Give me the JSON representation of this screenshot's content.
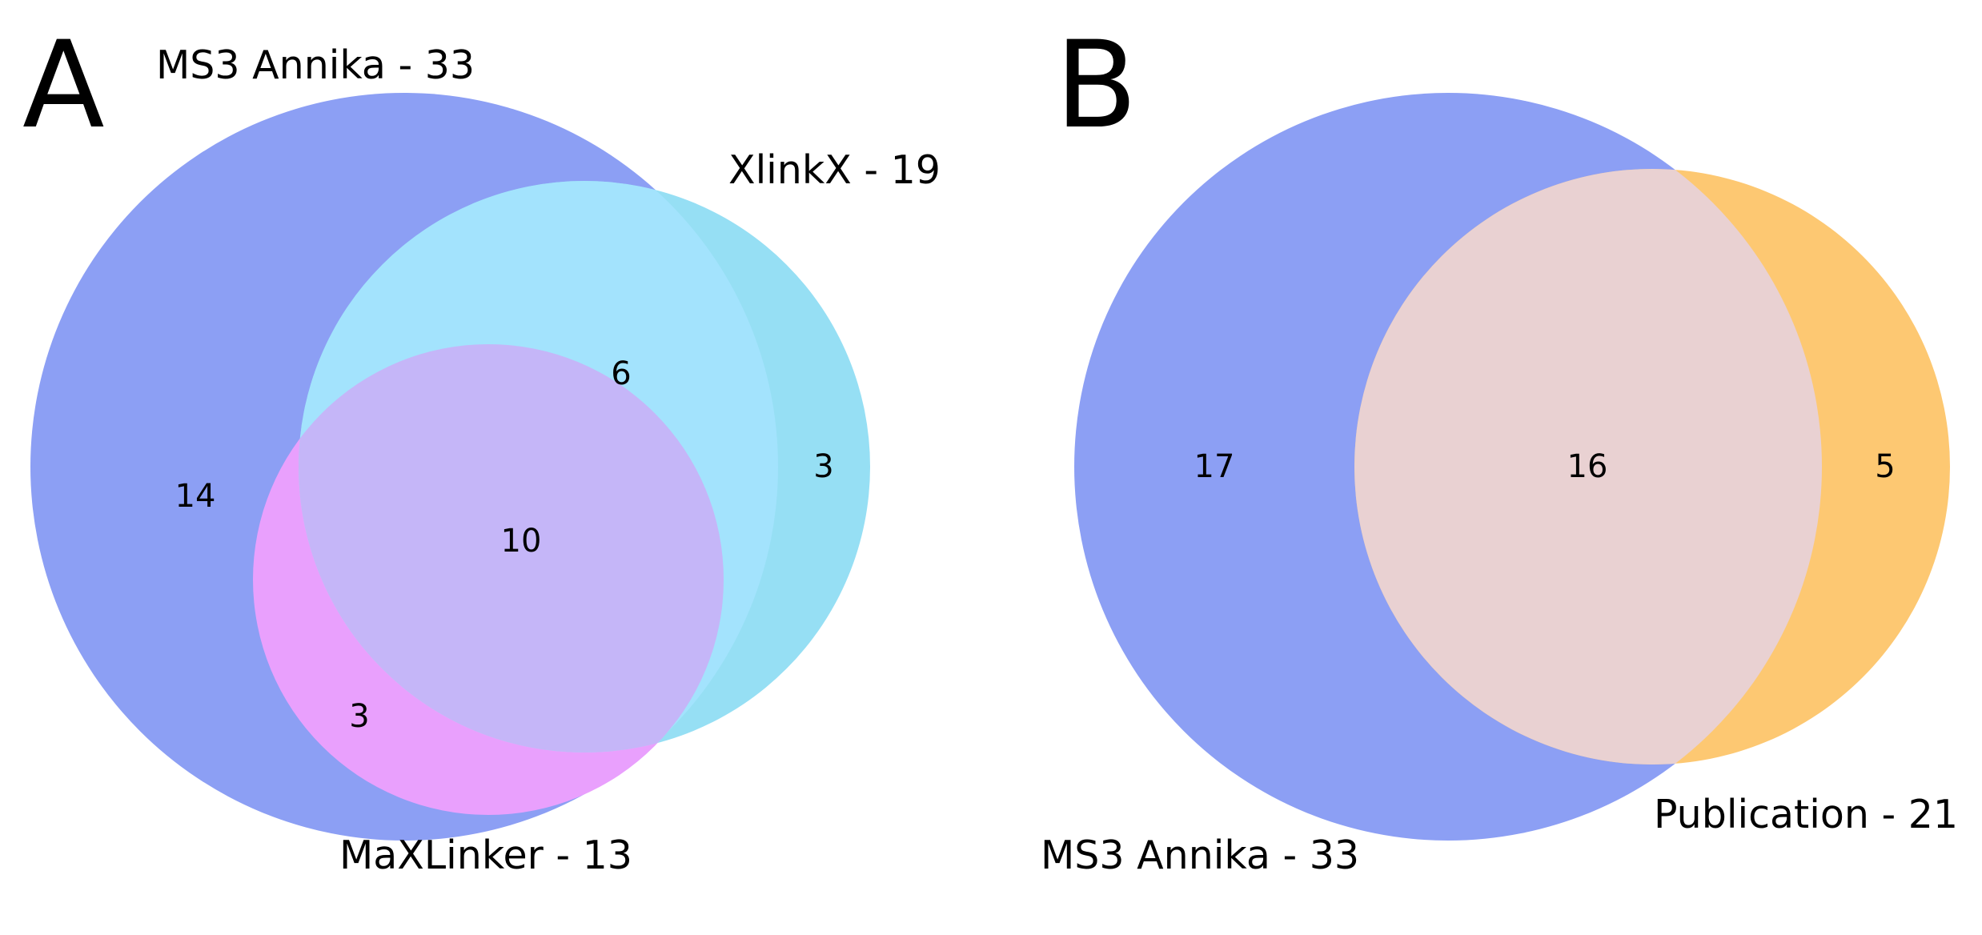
{
  "panels": [
    {
      "letter": "A",
      "sets": [
        {
          "label": "MS3 Annika - 33",
          "color": "#8c9ff4"
        },
        {
          "label": "XlinkX - 19",
          "color": "#96dff4"
        },
        {
          "label": "MaXLinker - 13",
          "color": "#e9a0fd"
        }
      ],
      "region_counts": {
        "ms3_only": "14",
        "xlinkx_only": "3",
        "ms3_xlinkx": "6",
        "ms3_maxlinker": "3",
        "all_three": "10"
      },
      "region_colors": {
        "ms3_xlinkx": "#a3e3fd",
        "all_three": "#c5b6f8"
      }
    },
    {
      "letter": "B",
      "sets": [
        {
          "label": "MS3 Annika - 33",
          "color": "#8c9ff4"
        },
        {
          "label": "Publication - 21",
          "color": "#fdc872"
        }
      ],
      "region_counts": {
        "ms3_only": "17",
        "both": "16",
        "publication_only": "5"
      },
      "region_colors": {
        "both": "#e9d1d2"
      }
    }
  ]
}
